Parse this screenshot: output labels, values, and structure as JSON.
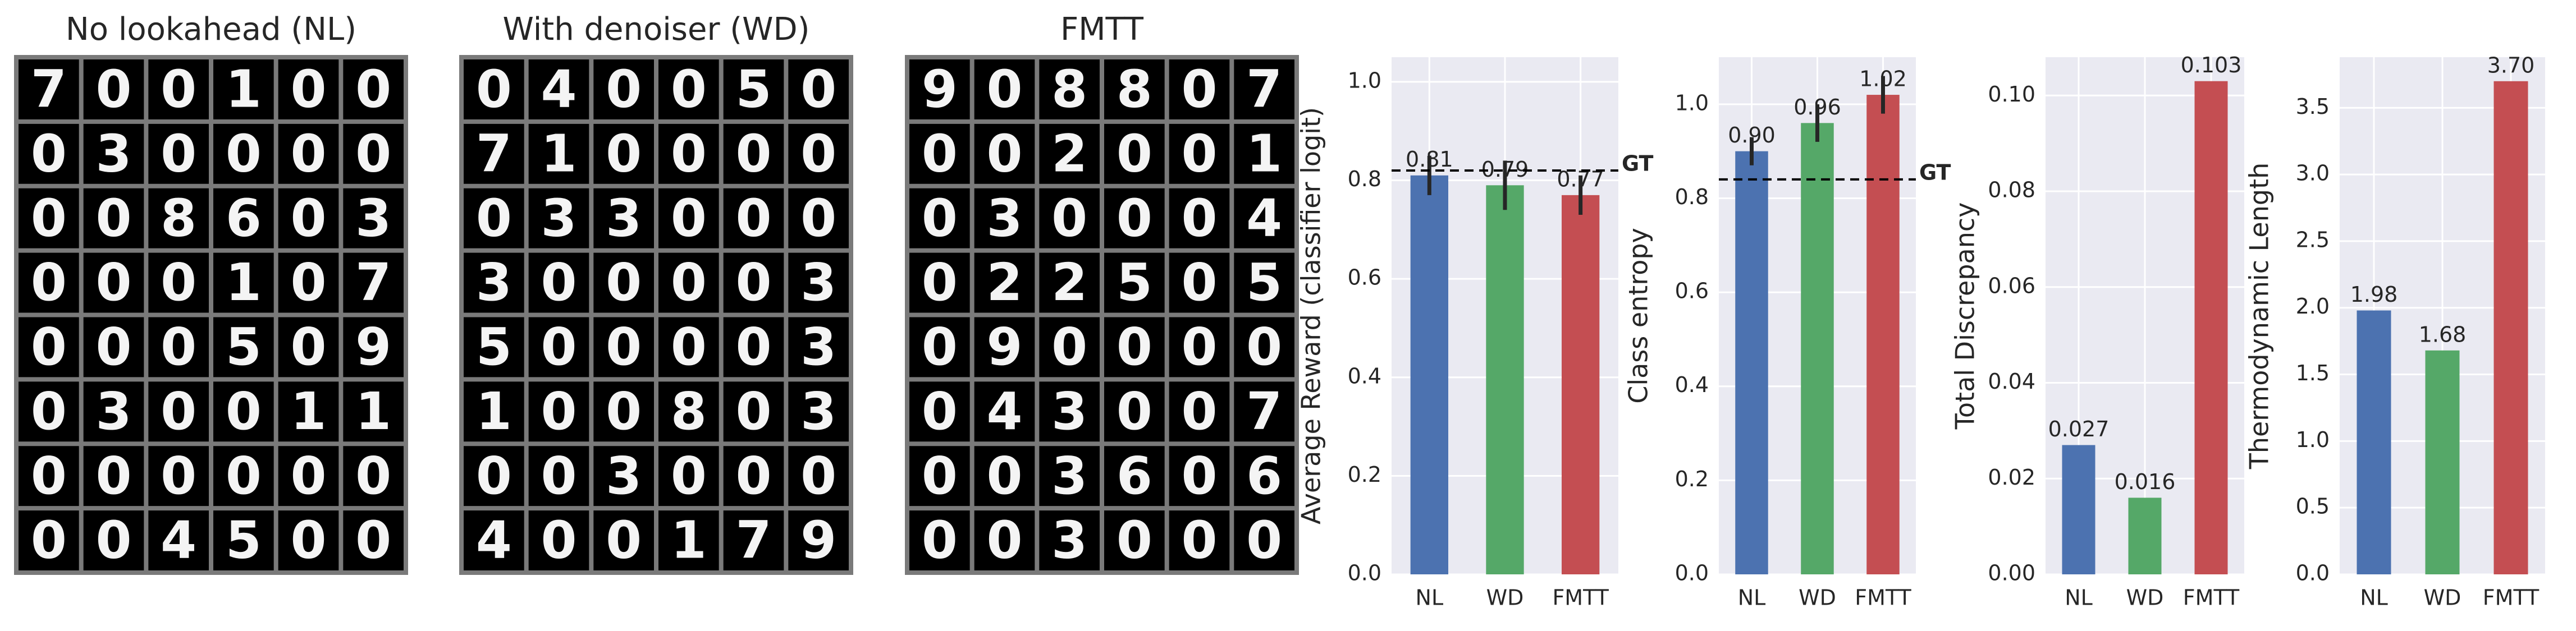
{
  "image_grids": [
    {
      "title": "No lookahead (NL)",
      "rows": [
        [
          "7",
          "0",
          "0",
          "1",
          "0",
          "0"
        ],
        [
          "0",
          "3",
          "0",
          "0",
          "0",
          "0"
        ],
        [
          "0",
          "0",
          "8",
          "6",
          "0",
          "3"
        ],
        [
          "0",
          "0",
          "0",
          "1",
          "0",
          "7"
        ],
        [
          "0",
          "0",
          "0",
          "5",
          "0",
          "9"
        ],
        [
          "0",
          "3",
          "0",
          "0",
          "1",
          "1"
        ],
        [
          "0",
          "0",
          "0",
          "0",
          "0",
          "0"
        ],
        [
          "0",
          "0",
          "4",
          "5",
          "0",
          "0"
        ]
      ]
    },
    {
      "title": "With denoiser (WD)",
      "rows": [
        [
          "0",
          "4",
          "0",
          "0",
          "5",
          "0"
        ],
        [
          "7",
          "1",
          "0",
          "0",
          "0",
          "0"
        ],
        [
          "0",
          "3",
          "3",
          "0",
          "0",
          "0"
        ],
        [
          "3",
          "0",
          "0",
          "0",
          "0",
          "3"
        ],
        [
          "5",
          "0",
          "0",
          "0",
          "0",
          "3"
        ],
        [
          "1",
          "0",
          "0",
          "8",
          "0",
          "3"
        ],
        [
          "0",
          "0",
          "3",
          "0",
          "0",
          "0"
        ],
        [
          "4",
          "0",
          "0",
          "1",
          "7",
          "9"
        ]
      ]
    },
    {
      "title": "FMTT",
      "rows": [
        [
          "9",
          "0",
          "8",
          "8",
          "0",
          "7"
        ],
        [
          "0",
          "0",
          "2",
          "0",
          "0",
          "1"
        ],
        [
          "0",
          "3",
          "0",
          "0",
          "0",
          "4"
        ],
        [
          "0",
          "2",
          "2",
          "5",
          "0",
          "5"
        ],
        [
          "0",
          "9",
          "0",
          "0",
          "0",
          "0"
        ],
        [
          "0",
          "4",
          "3",
          "0",
          "0",
          "7"
        ],
        [
          "0",
          "0",
          "3",
          "6",
          "0",
          "6"
        ],
        [
          "0",
          "0",
          "3",
          "0",
          "0",
          "0"
        ]
      ]
    }
  ],
  "chart_data": [
    {
      "type": "bar",
      "y_label": "Average Reward (classifier logit)",
      "categories": [
        "NL",
        "WD",
        "FMTT"
      ],
      "values": [
        0.81,
        0.79,
        0.77
      ],
      "value_labels": [
        "0.81",
        "0.79",
        "0.77"
      ],
      "errors": [
        0.04,
        0.05,
        0.04
      ],
      "colors": [
        "#4c72b0",
        "#55a868",
        "#c44e52"
      ],
      "ylim": [
        0,
        1.05
      ],
      "yticks": [
        {
          "value": 0,
          "label": "0.0"
        },
        {
          "value": 0.2,
          "label": "0.2"
        },
        {
          "value": 0.4,
          "label": "0.4"
        },
        {
          "value": 0.6,
          "label": "0.6"
        },
        {
          "value": 0.8,
          "label": "0.8"
        },
        {
          "value": 1,
          "label": "1.0"
        }
      ],
      "reference": {
        "value": 0.82,
        "label": "GT"
      },
      "grid": true
    },
    {
      "type": "bar",
      "y_label": "Class entropy",
      "categories": [
        "NL",
        "WD",
        "FMTT"
      ],
      "values": [
        0.9,
        0.96,
        1.02
      ],
      "value_labels": [
        "0.90",
        "0.96",
        "1.02"
      ],
      "errors": [
        0.03,
        0.04,
        0.04
      ],
      "colors": [
        "#4c72b0",
        "#55a868",
        "#c44e52"
      ],
      "ylim": [
        0,
        1.1
      ],
      "yticks": [
        {
          "value": 0,
          "label": "0.0"
        },
        {
          "value": 0.2,
          "label": "0.2"
        },
        {
          "value": 0.4,
          "label": "0.4"
        },
        {
          "value": 0.6,
          "label": "0.6"
        },
        {
          "value": 0.8,
          "label": "0.8"
        },
        {
          "value": 1,
          "label": "1.0"
        }
      ],
      "reference": {
        "value": 0.84,
        "label": "GT"
      },
      "grid": true
    },
    {
      "type": "bar",
      "y_label": "Total Discrepancy",
      "categories": [
        "NL",
        "WD",
        "FMTT"
      ],
      "values": [
        0.027,
        0.016,
        0.103
      ],
      "colors": [
        "#4c72b0",
        "#55a868",
        "#c44e52"
      ],
      "ylim": [
        0,
        0.108
      ],
      "yticks": [
        {
          "value": 0,
          "label": "0.00"
        },
        {
          "value": 0.02,
          "label": "0.02"
        },
        {
          "value": 0.04,
          "label": "0.04"
        },
        {
          "value": 0.06,
          "label": "0.06"
        },
        {
          "value": 0.08,
          "label": "0.08"
        },
        {
          "value": 0.1,
          "label": "0.10"
        }
      ],
      "grid": true
    },
    {
      "type": "bar",
      "y_label": "Thermodynamic Length",
      "categories": [
        "NL",
        "WD",
        "FMTT"
      ],
      "values": [
        1.98,
        1.68,
        3.7
      ],
      "value_labels": [
        "1.98",
        "1.68",
        "3.70"
      ],
      "colors": [
        "#4c72b0",
        "#55a868",
        "#c44e52"
      ],
      "ylim": [
        0,
        3.88
      ],
      "yticks": [
        {
          "value": 0,
          "label": "0.0"
        },
        {
          "value": 0.5,
          "label": "0.5"
        },
        {
          "value": 1,
          "label": "1.0"
        },
        {
          "value": 1.5,
          "label": "1.5"
        },
        {
          "value": 2,
          "label": "2.0"
        },
        {
          "value": 2.5,
          "label": "2.5"
        },
        {
          "value": 3,
          "label": "3.0"
        },
        {
          "value": 3.5,
          "label": "3.5"
        }
      ],
      "grid": true
    }
  ]
}
